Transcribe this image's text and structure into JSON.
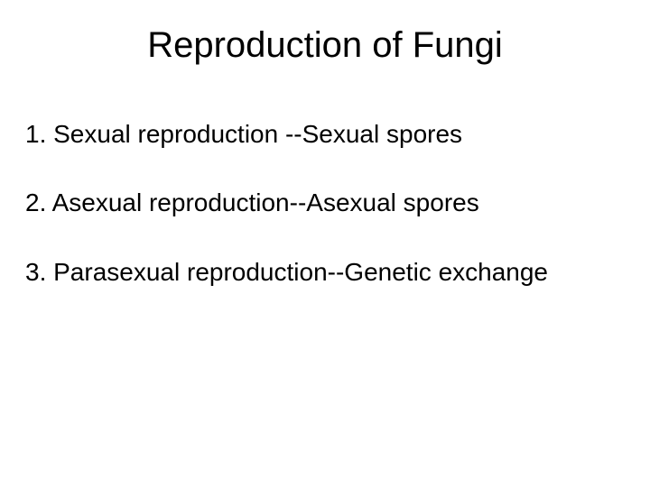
{
  "title": "Reproduction of Fungi",
  "items": [
    "1. Sexual reproduction --Sexual spores",
    "2. Asexual reproduction--Asexual spores",
    "3. Parasexual reproduction--Genetic exchange"
  ],
  "colors": {
    "background": "#ffffff",
    "text": "#000000"
  },
  "typography": {
    "title_fontsize": 40,
    "body_fontsize": 28,
    "title_font": "Arial",
    "body_font": "Comic Sans MS"
  }
}
